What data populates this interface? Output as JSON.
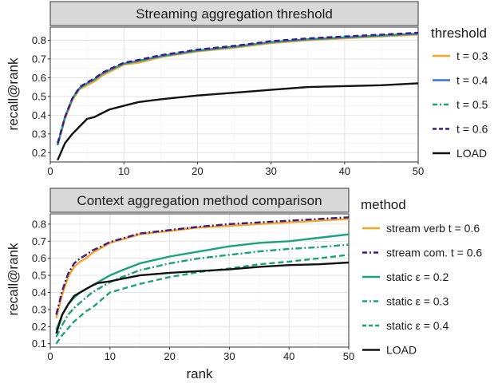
{
  "chart_data": [
    {
      "type": "line",
      "title": "Streaming aggregation threshold",
      "xlabel": "",
      "ylabel": "recall@rank",
      "xlim": [
        0,
        50
      ],
      "ylim": [
        0.15,
        0.87
      ],
      "x_ticks": [
        0,
        10,
        20,
        30,
        40,
        50
      ],
      "y_ticks": [
        0.2,
        0.3,
        0.4,
        0.5,
        0.6,
        0.7,
        0.8
      ],
      "grid": true,
      "legend_title": "threshold",
      "legend_position": "right",
      "x": [
        1,
        2,
        3,
        4,
        5,
        6,
        7,
        8,
        10,
        12,
        15,
        20,
        25,
        30,
        35,
        40,
        45,
        50
      ],
      "series": [
        {
          "name": "t = 0.3",
          "color": "#f5a623",
          "dash": "solid",
          "values": [
            0.24,
            0.38,
            0.48,
            0.54,
            0.56,
            0.58,
            0.61,
            0.63,
            0.67,
            0.68,
            0.71,
            0.74,
            0.76,
            0.785,
            0.8,
            0.81,
            0.82,
            0.83
          ]
        },
        {
          "name": "t = 0.4",
          "color": "#3b6fe0",
          "dash": "solid",
          "values": [
            0.24,
            0.39,
            0.49,
            0.545,
            0.57,
            0.59,
            0.62,
            0.64,
            0.675,
            0.69,
            0.715,
            0.745,
            0.765,
            0.79,
            0.805,
            0.815,
            0.825,
            0.835
          ]
        },
        {
          "name": "t = 0.5",
          "color": "#1aa37a",
          "dash": "dashdot",
          "values": [
            0.24,
            0.39,
            0.49,
            0.545,
            0.57,
            0.59,
            0.62,
            0.64,
            0.675,
            0.69,
            0.715,
            0.745,
            0.765,
            0.79,
            0.805,
            0.815,
            0.825,
            0.835
          ]
        },
        {
          "name": "t = 0.6",
          "color": "#3d1a8a",
          "dash": "dashed",
          "values": [
            0.25,
            0.39,
            0.49,
            0.55,
            0.575,
            0.595,
            0.625,
            0.645,
            0.68,
            0.695,
            0.72,
            0.75,
            0.77,
            0.795,
            0.81,
            0.82,
            0.83,
            0.84
          ]
        },
        {
          "name": "LOAD",
          "color": "#111111",
          "dash": "solid",
          "values": [
            0.16,
            0.25,
            0.3,
            0.34,
            0.38,
            0.39,
            0.41,
            0.43,
            0.45,
            0.47,
            0.485,
            0.505,
            0.52,
            0.535,
            0.55,
            0.555,
            0.56,
            0.57
          ]
        }
      ]
    },
    {
      "type": "line",
      "title": "Context aggregation method comparison",
      "xlabel": "rank",
      "ylabel": "recall@rank",
      "xlim": [
        0,
        50
      ],
      "ylim": [
        0.08,
        0.86
      ],
      "x_ticks": [
        0,
        10,
        20,
        30,
        40,
        50
      ],
      "y_ticks": [
        0.1,
        0.2,
        0.3,
        0.4,
        0.5,
        0.6,
        0.7,
        0.8
      ],
      "grid": true,
      "legend_title": "method",
      "legend_position": "right",
      "x": [
        1,
        2,
        3,
        4,
        5,
        6,
        7,
        8,
        10,
        12,
        15,
        20,
        25,
        30,
        35,
        40,
        45,
        50
      ],
      "series": [
        {
          "name": "stream verb t = 0.6",
          "color": "#f5a623",
          "dash": "solid",
          "values": [
            0.25,
            0.39,
            0.49,
            0.55,
            0.58,
            0.6,
            0.63,
            0.65,
            0.69,
            0.71,
            0.74,
            0.76,
            0.78,
            0.79,
            0.8,
            0.81,
            0.82,
            0.83
          ]
        },
        {
          "name": "stream com. t = 0.6",
          "color": "#3d1a8a",
          "dash": "dashdot",
          "values": [
            0.27,
            0.41,
            0.51,
            0.57,
            0.6,
            0.62,
            0.645,
            0.66,
            0.695,
            0.715,
            0.745,
            0.765,
            0.785,
            0.8,
            0.81,
            0.82,
            0.83,
            0.84
          ]
        },
        {
          "name": "static ε = 0.2",
          "color": "#1aa37a",
          "dash": "solid",
          "values": [
            0.18,
            0.27,
            0.33,
            0.37,
            0.4,
            0.42,
            0.44,
            0.46,
            0.5,
            0.53,
            0.57,
            0.61,
            0.64,
            0.67,
            0.69,
            0.7,
            0.72,
            0.74
          ]
        },
        {
          "name": "static ε = 0.3",
          "color": "#1aa37a",
          "dash": "dashdot",
          "values": [
            0.14,
            0.21,
            0.27,
            0.31,
            0.34,
            0.37,
            0.4,
            0.42,
            0.46,
            0.49,
            0.53,
            0.57,
            0.6,
            0.62,
            0.64,
            0.655,
            0.665,
            0.68
          ]
        },
        {
          "name": "static ε = 0.4",
          "color": "#1aa37a",
          "dash": "dashed",
          "values": [
            0.1,
            0.15,
            0.19,
            0.23,
            0.26,
            0.29,
            0.31,
            0.34,
            0.4,
            0.42,
            0.45,
            0.49,
            0.52,
            0.54,
            0.565,
            0.58,
            0.6,
            0.62
          ]
        },
        {
          "name": "LOAD",
          "color": "#111111",
          "dash": "solid",
          "values": [
            0.16,
            0.27,
            0.33,
            0.38,
            0.4,
            0.42,
            0.44,
            0.455,
            0.465,
            0.48,
            0.5,
            0.515,
            0.525,
            0.535,
            0.55,
            0.56,
            0.565,
            0.575
          ]
        }
      ]
    }
  ]
}
